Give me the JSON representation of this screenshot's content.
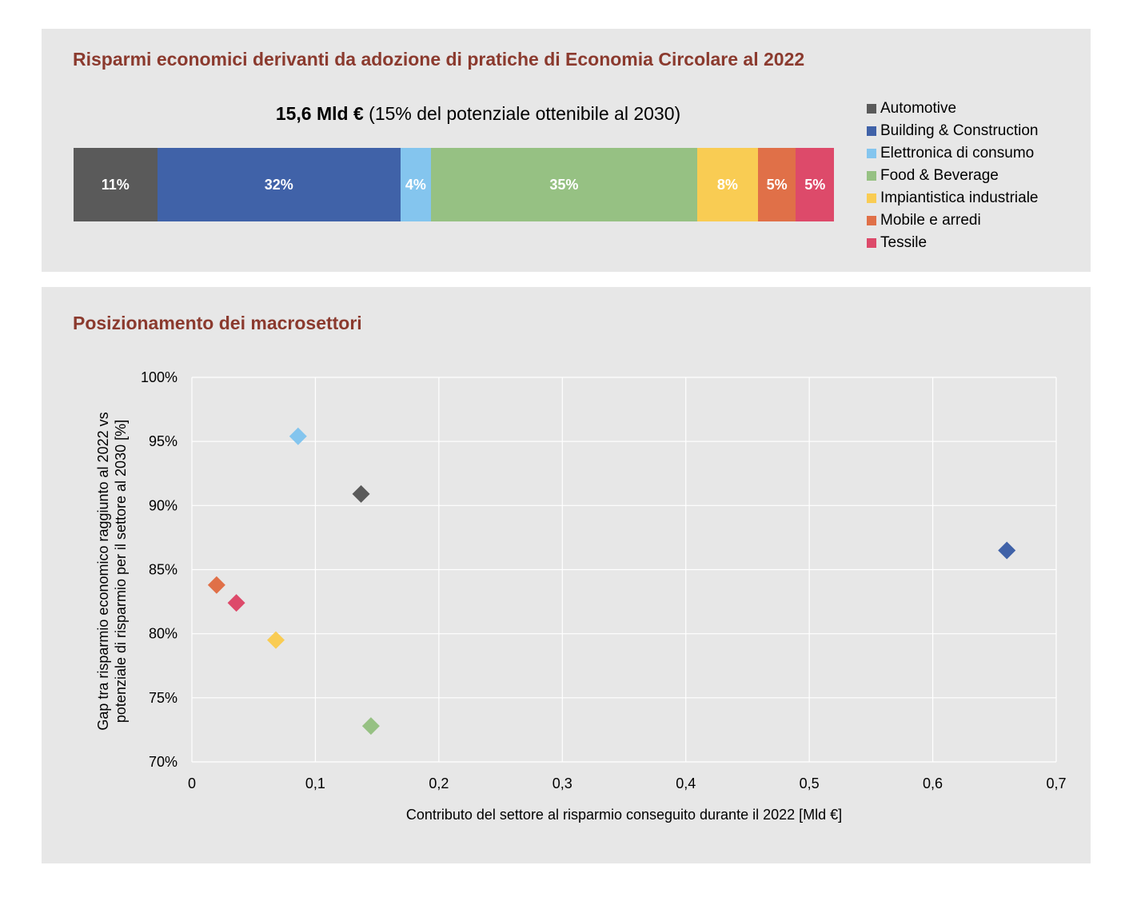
{
  "top": {
    "title": "Risparmi economici derivanti da adozione di pratiche di Economia Circolare al 2022",
    "total_bold": "15,6 Mld €",
    "total_rest": " (15% del potenziale ottenibile al 2030)"
  },
  "bottom": {
    "title": "Posizionamento dei macrosettori"
  },
  "chart_data": [
    {
      "type": "bar",
      "orientation": "horizontal-stacked-100",
      "title": "Risparmi economici derivanti da adozione di pratiche di Economia Circolare al 2022",
      "subtitle": "15,6 Mld € (15% del potenziale ottenibile al 2030)",
      "legend_position": "right",
      "series": [
        {
          "name": "Automotive",
          "value": 11,
          "label": "11%",
          "color": "#5a5a5a"
        },
        {
          "name": "Building & Construction",
          "value": 32,
          "label": "32%",
          "color": "#4062a8"
        },
        {
          "name": "Elettronica di consumo",
          "value": 4,
          "label": "4%",
          "color": "#84c5ee"
        },
        {
          "name": "Food & Beverage",
          "value": 35,
          "label": "35%",
          "color": "#96c183"
        },
        {
          "name": "Impiantistica industriale",
          "value": 8,
          "label": "8%",
          "color": "#f9cc53"
        },
        {
          "name": "Mobile e arredi",
          "value": 5,
          "label": "5%",
          "color": "#e07048"
        },
        {
          "name": "Tessile",
          "value": 5,
          "label": "5%",
          "color": "#dd4a6a"
        }
      ]
    },
    {
      "type": "scatter",
      "title": "Posizionamento dei macrosettori",
      "xlabel": "Contributo del settore al risparmio conseguito durante il 2022 [Mld €]",
      "ylabel_lines": [
        "Gap tra risparmio economico raggiunto al 2022 vs",
        "potenziale di risparmio per il settore al 2030 [%]"
      ],
      "xlim": [
        0,
        0.7
      ],
      "ylim": [
        70,
        100
      ],
      "x_ticks": [
        0,
        0.1,
        0.2,
        0.3,
        0.4,
        0.5,
        0.6,
        0.7
      ],
      "x_tick_labels": [
        "0",
        "0,1",
        "0,2",
        "0,3",
        "0,4",
        "0,5",
        "0,6",
        "0,7"
      ],
      "y_ticks": [
        70,
        75,
        80,
        85,
        90,
        95,
        100
      ],
      "y_tick_labels": [
        "70%",
        "75%",
        "80%",
        "85%",
        "90%",
        "95%",
        "100%"
      ],
      "grid": true,
      "marker": "diamond",
      "points": [
        {
          "name": "Automotive",
          "x": 0.137,
          "y": 90.9,
          "color": "#5a5a5a"
        },
        {
          "name": "Building & Construction",
          "x": 0.66,
          "y": 86.5,
          "color": "#4062a8"
        },
        {
          "name": "Elettronica di consumo",
          "x": 0.086,
          "y": 95.4,
          "color": "#84c5ee"
        },
        {
          "name": "Food & Beverage",
          "x": 0.145,
          "y": 72.8,
          "color": "#96c183"
        },
        {
          "name": "Impiantistica industriale",
          "x": 0.068,
          "y": 79.5,
          "color": "#f9cc53"
        },
        {
          "name": "Mobile e arredi",
          "x": 0.02,
          "y": 83.8,
          "color": "#e07048"
        },
        {
          "name": "Tessile",
          "x": 0.036,
          "y": 82.4,
          "color": "#dd4a6a"
        }
      ]
    }
  ]
}
